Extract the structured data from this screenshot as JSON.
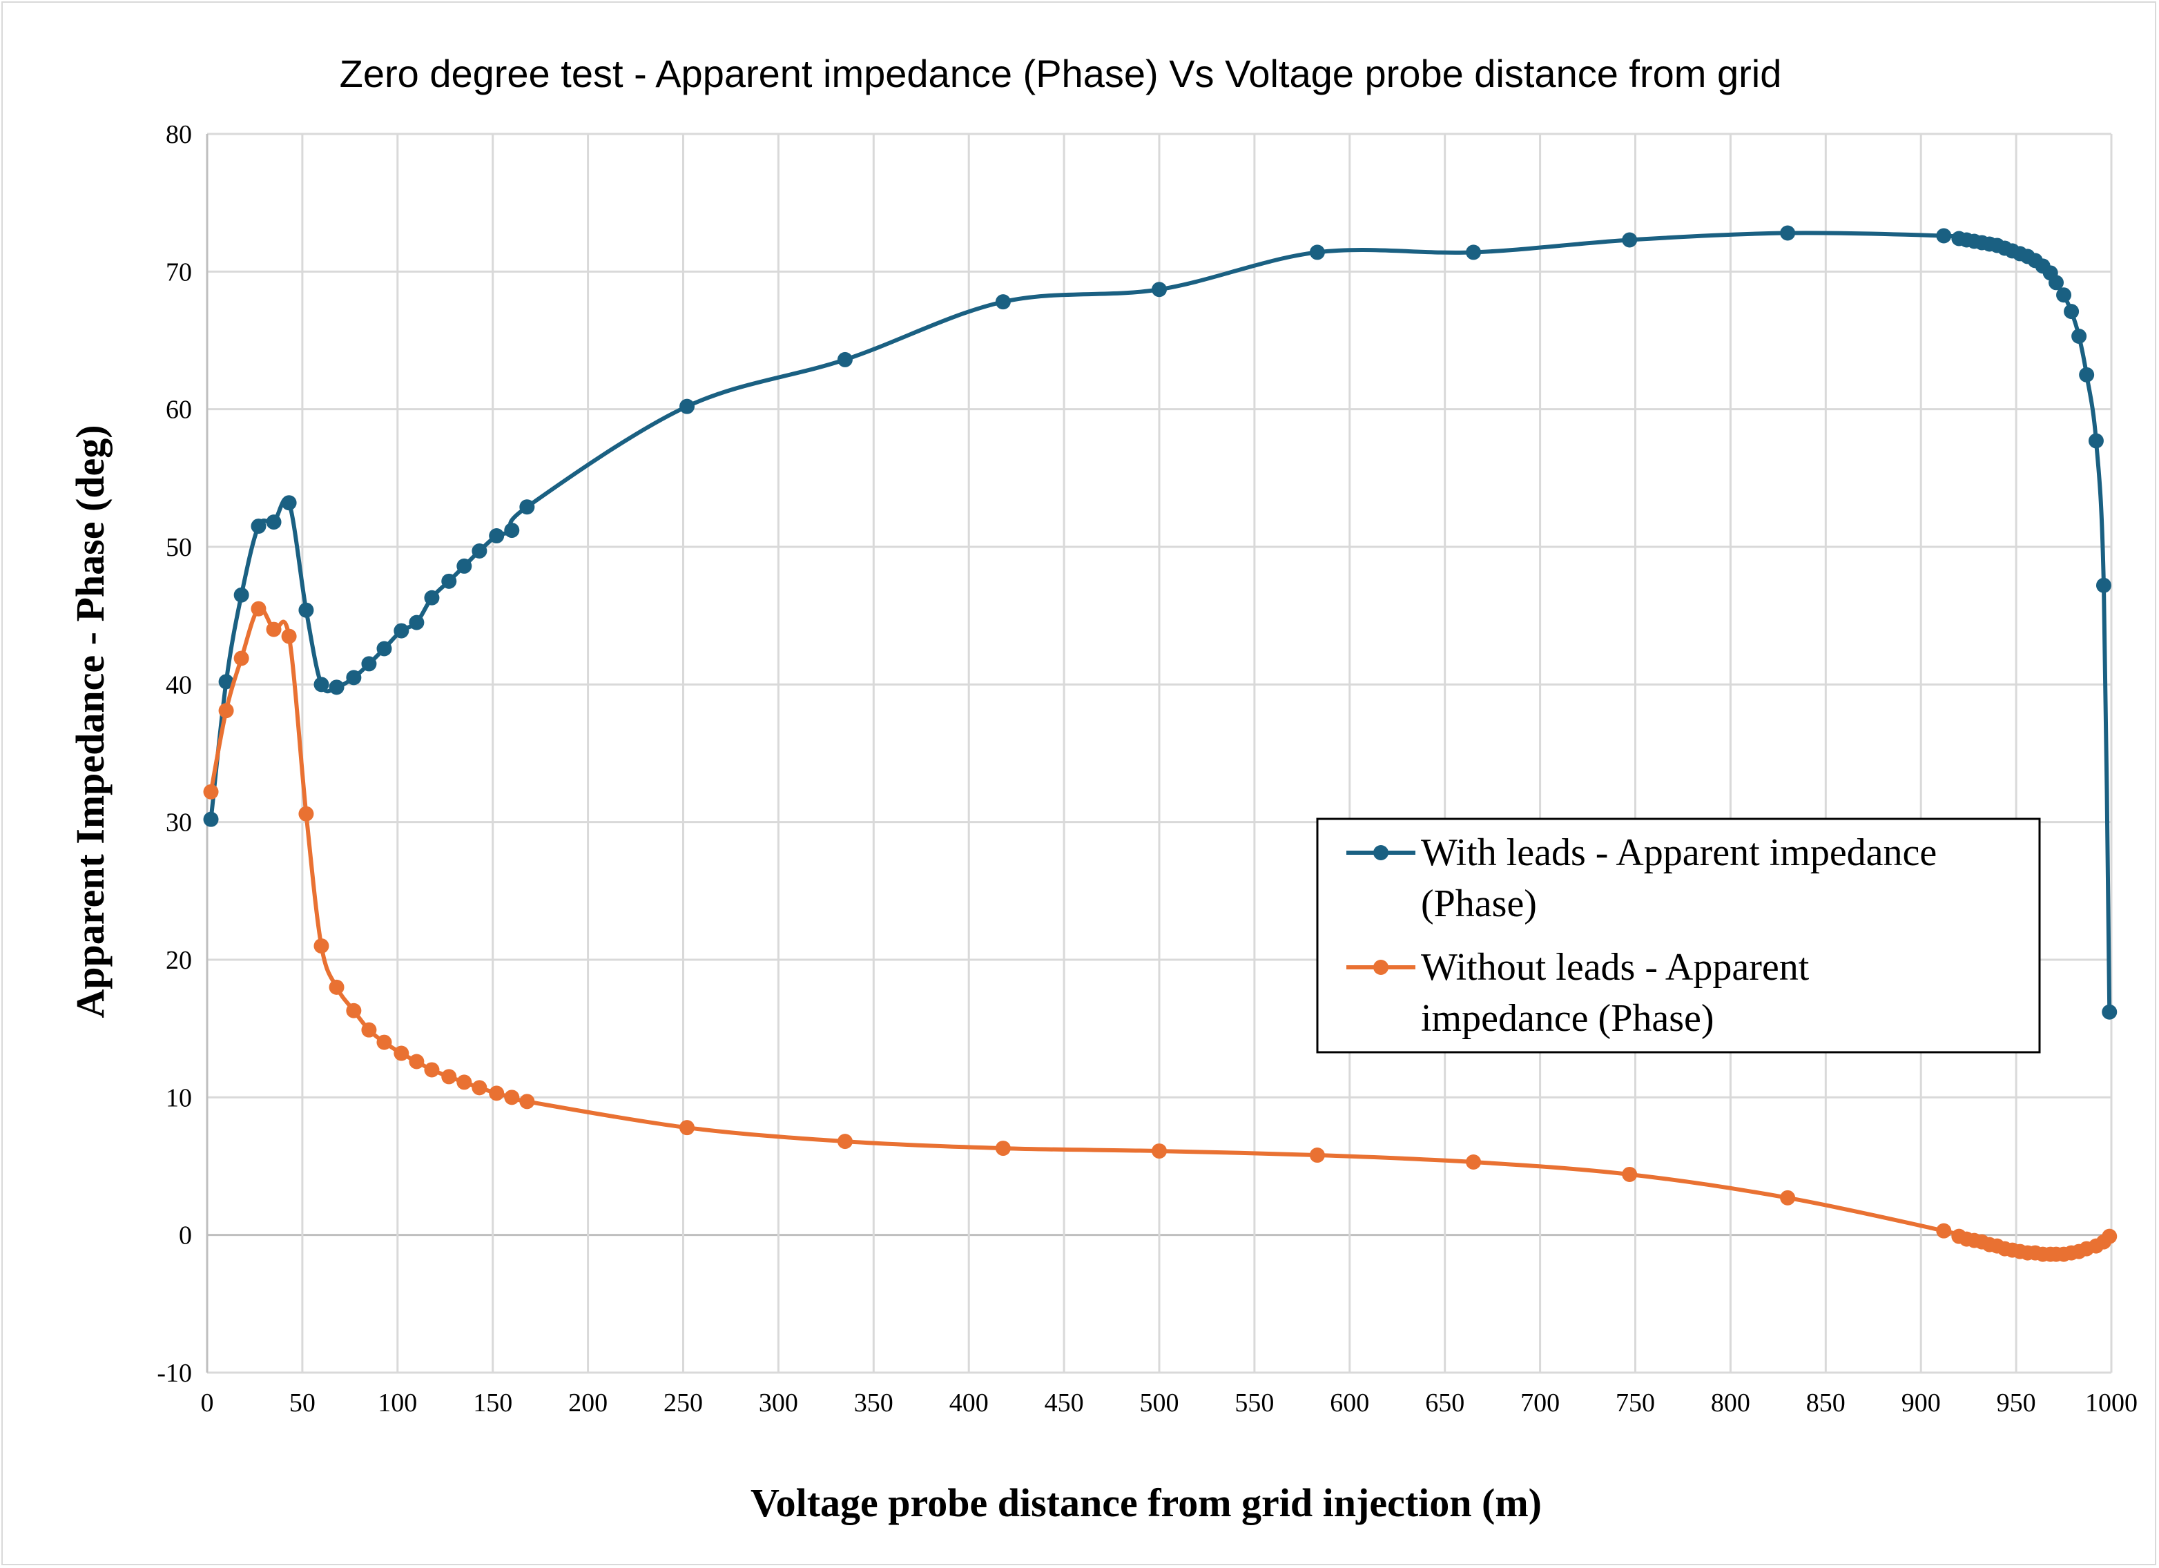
{
  "chart_data": {
    "type": "line",
    "title": "Zero degree test - Apparent impedance (Phase) Vs Voltage probe distance from grid",
    "xlabel": "Voltage probe distance from grid injection  (m)",
    "ylabel": "Apparent Impedance - Phase (deg)",
    "xlim": [
      0,
      1000
    ],
    "ylim": [
      -10,
      80
    ],
    "xticks": [
      0,
      50,
      100,
      150,
      200,
      250,
      300,
      350,
      400,
      450,
      500,
      550,
      600,
      650,
      700,
      750,
      800,
      850,
      900,
      950,
      1000
    ],
    "yticks": [
      -10,
      0,
      10,
      20,
      30,
      40,
      50,
      60,
      70,
      80
    ],
    "grid": true,
    "smooth": true,
    "legend_position": "right",
    "x": [
      2,
      10,
      18,
      27,
      35,
      43,
      52,
      60,
      68,
      77,
      85,
      93,
      102,
      110,
      118,
      127,
      135,
      143,
      152,
      160,
      168,
      252,
      335,
      418,
      500,
      583,
      665,
      747,
      830,
      912,
      920,
      924,
      928,
      932,
      936,
      940,
      944,
      948,
      952,
      956,
      960,
      964,
      968,
      971,
      975,
      979,
      983,
      987,
      992,
      996,
      999
    ],
    "series": [
      {
        "name": "With leads - Apparent impedance (Phase)",
        "color": "#1a6082",
        "values": [
          30.2,
          40.2,
          46.5,
          51.5,
          51.8,
          53.2,
          45.4,
          40.0,
          39.8,
          40.5,
          41.5,
          42.6,
          43.9,
          44.5,
          46.3,
          47.5,
          48.6,
          49.7,
          50.8,
          51.2,
          52.9,
          60.2,
          63.6,
          67.8,
          68.7,
          71.4,
          71.4,
          72.3,
          72.8,
          72.6,
          72.4,
          72.3,
          72.2,
          72.1,
          72.0,
          71.9,
          71.7,
          71.5,
          71.3,
          71.1,
          70.8,
          70.4,
          69.9,
          69.2,
          68.3,
          67.1,
          65.3,
          62.5,
          57.7,
          47.2,
          16.2
        ]
      },
      {
        "name": "Without leads - Apparent impedance (Phase)",
        "color": "#e97132",
        "values": [
          32.2,
          38.1,
          41.9,
          45.5,
          44.0,
          43.5,
          30.6,
          21.0,
          18.0,
          16.3,
          14.9,
          14.0,
          13.2,
          12.6,
          12.0,
          11.5,
          11.1,
          10.7,
          10.3,
          10.0,
          9.7,
          7.8,
          6.8,
          6.3,
          6.1,
          5.8,
          5.3,
          4.4,
          2.7,
          0.3,
          -0.1,
          -0.3,
          -0.4,
          -0.5,
          -0.7,
          -0.8,
          -1.0,
          -1.1,
          -1.2,
          -1.3,
          -1.3,
          -1.4,
          -1.4,
          -1.4,
          -1.4,
          -1.3,
          -1.2,
          -1.0,
          -0.8,
          -0.5,
          -0.1
        ]
      }
    ],
    "legend": {
      "lines": [
        [
          "With leads - Apparent impedance",
          "(Phase)"
        ],
        [
          "Without leads - Apparent",
          "impedance (Phase)"
        ]
      ]
    }
  }
}
